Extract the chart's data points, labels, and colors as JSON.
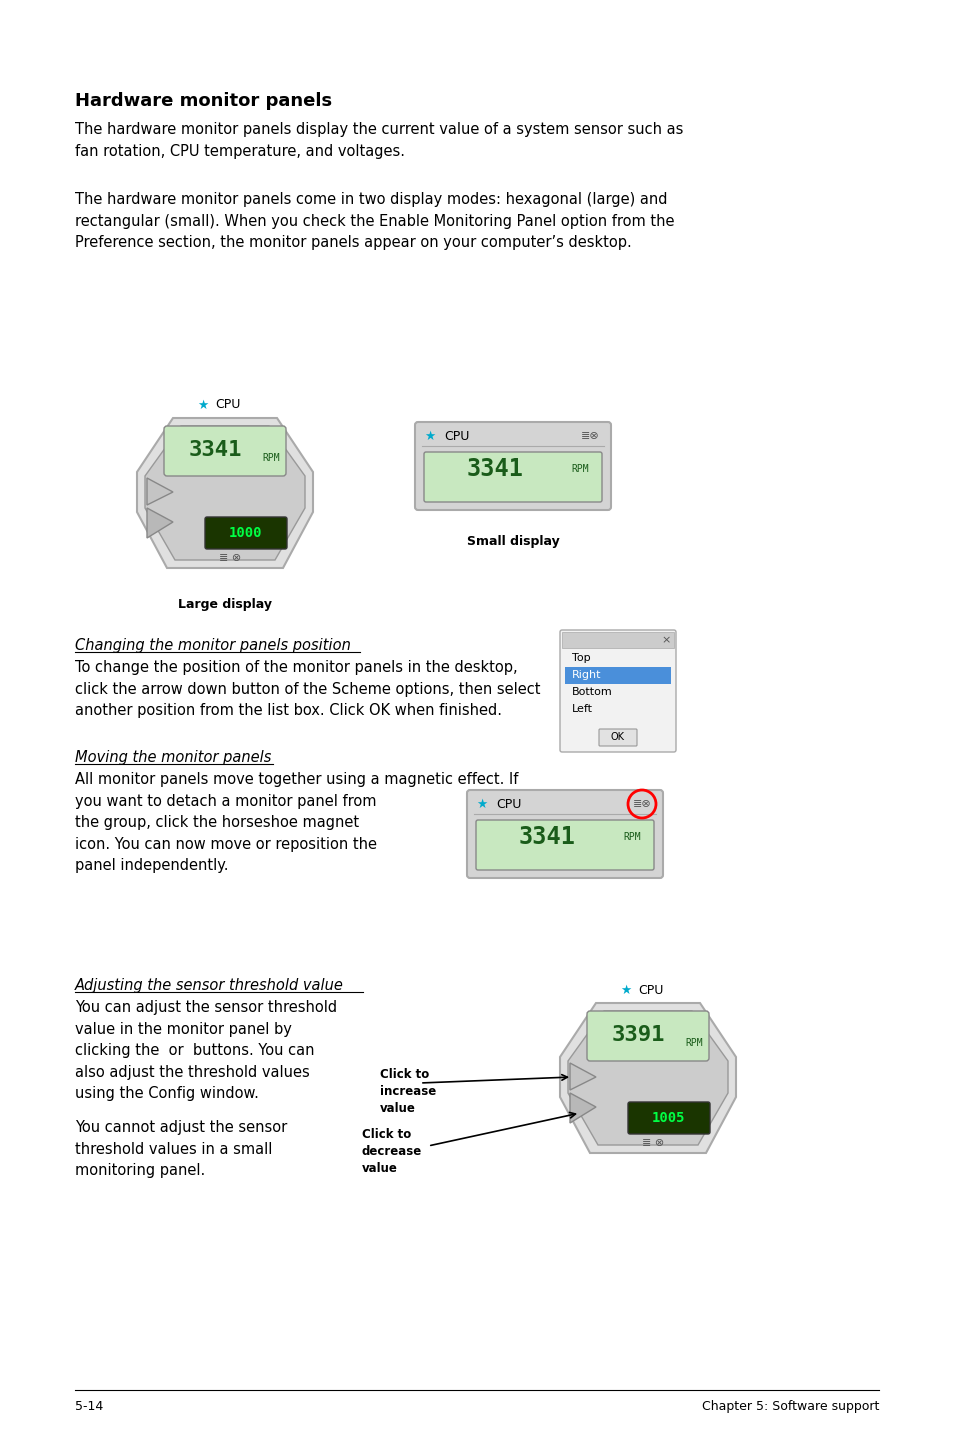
{
  "title": "Hardware monitor panels",
  "para1": "The hardware monitor panels display the current value of a system sensor such as\nfan rotation, CPU temperature, and voltages.",
  "para2": "The hardware monitor panels come in two display modes: hexagonal (large) and\nrectangular (small). When you check the Enable Monitoring Panel option from the\nPreference section, the monitor panels appear on your computer’s desktop.",
  "large_display_label": "Large display",
  "small_display_label": "Small display",
  "section1_title": "Changing the monitor panels position",
  "section1_text": "To change the position of the monitor panels in the desktop,\nclick the arrow down button of the Scheme options, then select\nanother position from the list box. Click OK when finished.",
  "section2_title": "Moving the monitor panels",
  "section2_text": "All monitor panels move together using a magnetic effect. If\nyou want to detach a monitor panel from\nthe group, click the horseshoe magnet\nicon. You can now move or reposition the\npanel independently.",
  "section3_title": "Adjusting the sensor threshold value",
  "section3_para1": "You can adjust the sensor threshold\nvalue in the monitor panel by\nclicking the  or  buttons. You can\nalso adjust the threshold values\nusing the Config window.",
  "section3_para2": "You cannot adjust the sensor\nthreshold values in a small\nmonitoring panel.",
  "click_increase": "Click to\nincrease\nvalue",
  "click_decrease": "Click to\ndecrease\nvalue",
  "footer_left": "5-14",
  "footer_right": "Chapter 5: Software support",
  "bg_color": "#ffffff",
  "text_color": "#000000",
  "lcd_green": "#c8e8c0",
  "lcd_text_color": "#1a5c1a",
  "panel_gray": "#d8d8d8",
  "dialog_list_items": [
    "Top",
    "Right",
    "Bottom",
    "Left"
  ],
  "dialog_selected": "Right"
}
